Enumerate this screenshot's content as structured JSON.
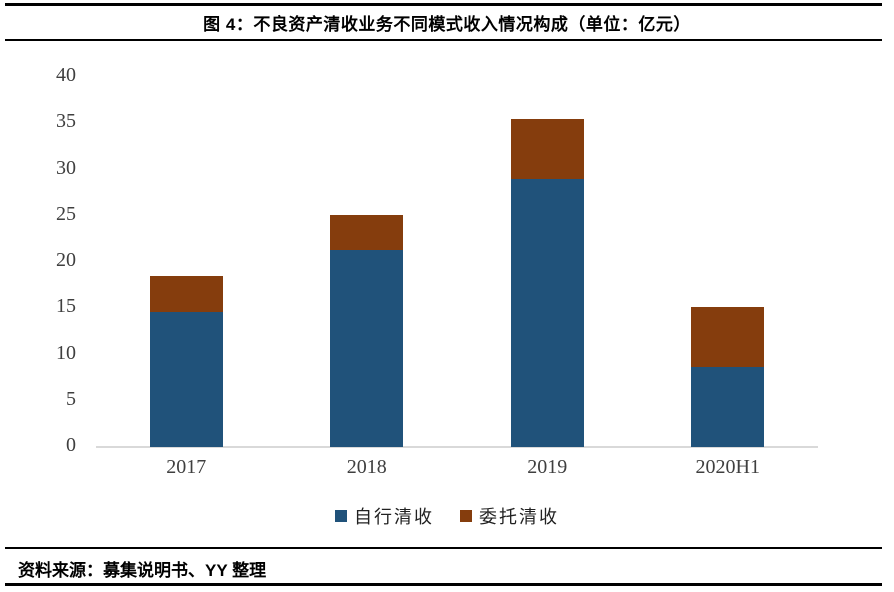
{
  "header": {
    "title": "图 4：不良资产清收业务不同模式收入情况构成（单位：亿元）"
  },
  "footer": {
    "source": "资料来源：募集说明书、YY 整理"
  },
  "chart_data": {
    "type": "bar",
    "stacked": true,
    "title": "图 4：不良资产清收业务不同模式收入情况构成（单位：亿元）",
    "unit": "亿元",
    "categories": [
      "2017",
      "2018",
      "2019",
      "2020H1"
    ],
    "series": [
      {
        "name": "自行清收",
        "color": "#20527a",
        "values": [
          14.6,
          21.3,
          29.0,
          8.6
        ]
      },
      {
        "name": "委托清收",
        "color": "#853d0d",
        "values": [
          3.9,
          3.8,
          6.5,
          6.5
        ]
      }
    ],
    "totals": [
      18.5,
      25.1,
      35.5,
      15.1
    ],
    "xlabel": "",
    "ylabel": "",
    "ylim": [
      0,
      40
    ],
    "yticks": [
      0,
      5,
      10,
      15,
      20,
      25,
      30,
      35,
      40
    ],
    "grid": false,
    "legend_position": "bottom",
    "axis_line_color": "#d9d9d9",
    "tick_label_color": "#3f3f3f"
  }
}
